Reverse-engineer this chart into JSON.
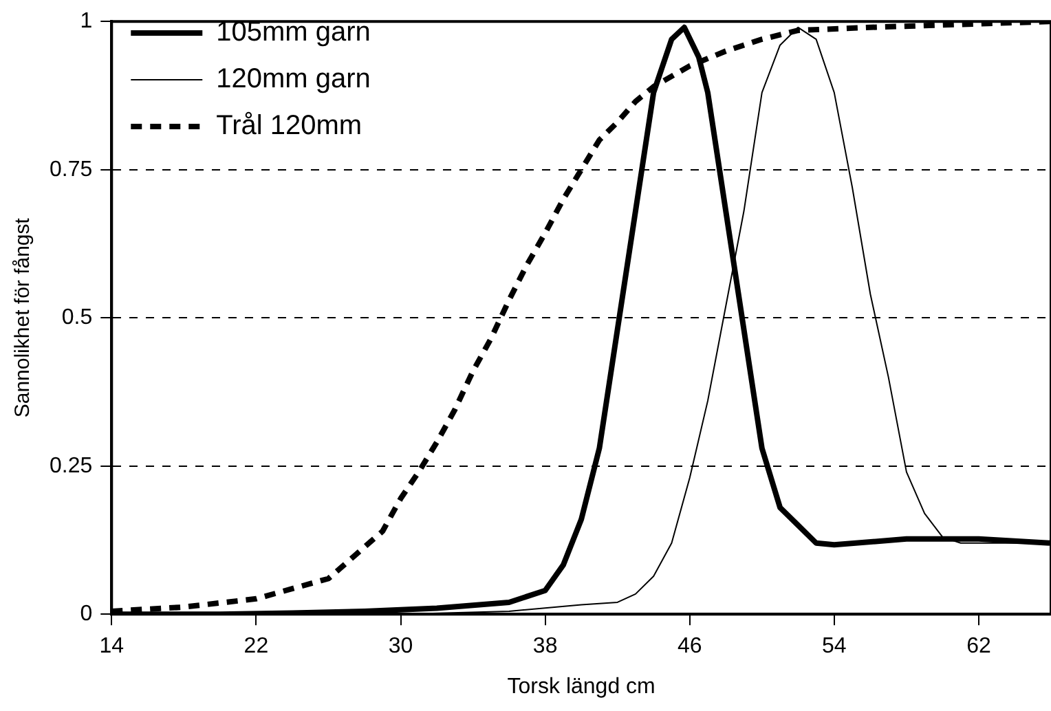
{
  "chart_data": {
    "type": "line",
    "xlabel": "Torsk längd cm",
    "ylabel": "Sannolikhet för fångst",
    "xlim": [
      14,
      66
    ],
    "xticks": [
      14,
      22,
      30,
      38,
      46,
      54,
      62
    ],
    "ylim": [
      0,
      1
    ],
    "yticks": [
      0,
      0.25,
      0.5,
      0.75,
      1
    ],
    "grid": "y",
    "legend": "top left",
    "marker": "none",
    "series": [
      {
        "name": "105mm garn",
        "color": "#000000",
        "line_style": "solid",
        "x": [
          14,
          20,
          24,
          28,
          32,
          36,
          38,
          39,
          40,
          41,
          42,
          43,
          44,
          45,
          45.7,
          46.5,
          47,
          48,
          49,
          50,
          51,
          52,
          53,
          54,
          58,
          62,
          66
        ],
        "values": [
          0,
          0,
          0.002,
          0.005,
          0.01,
          0.02,
          0.04,
          0.083,
          0.16,
          0.28,
          0.48,
          0.68,
          0.88,
          0.97,
          0.99,
          0.94,
          0.88,
          0.68,
          0.48,
          0.28,
          0.18,
          0.15,
          0.12,
          0.117,
          0.127,
          0.127,
          0.12
        ]
      },
      {
        "name": "120mm garn",
        "color": "#000000",
        "line_style": "solid",
        "x": [
          14,
          30,
          36,
          40,
          42,
          43,
          44,
          45,
          46,
          47,
          48,
          49,
          50,
          51,
          52,
          53,
          54,
          55,
          56,
          57,
          58,
          59,
          60,
          61,
          62,
          66
        ],
        "values": [
          0,
          0,
          0.005,
          0.016,
          0.02,
          0.034,
          0.064,
          0.12,
          0.23,
          0.36,
          0.52,
          0.68,
          0.88,
          0.96,
          0.99,
          0.97,
          0.88,
          0.72,
          0.54,
          0.4,
          0.24,
          0.17,
          0.13,
          0.12,
          0.12,
          0.12
        ]
      },
      {
        "name": "Trål 120mm",
        "color": "#000000",
        "line_style": "dashed",
        "x": [
          14,
          18,
          22,
          26,
          29,
          30,
          31,
          32,
          33,
          34,
          35,
          36,
          37,
          38,
          39,
          40,
          41,
          42,
          43,
          44,
          46,
          48,
          50,
          52,
          56,
          66
        ],
        "values": [
          0.005,
          0.012,
          0.026,
          0.06,
          0.14,
          0.195,
          0.24,
          0.29,
          0.345,
          0.41,
          0.465,
          0.53,
          0.59,
          0.643,
          0.7,
          0.75,
          0.8,
          0.83,
          0.865,
          0.89,
          0.925,
          0.95,
          0.97,
          0.985,
          0.99,
          1
        ]
      }
    ]
  }
}
